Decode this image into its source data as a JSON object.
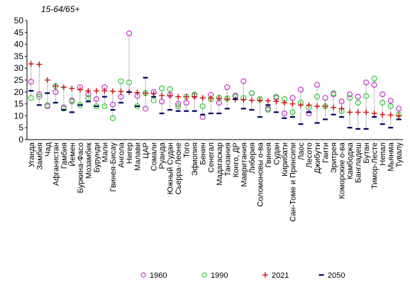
{
  "chart_data": {
    "type": "scatter",
    "title": "15-64/65+",
    "ylim": [
      0,
      50
    ],
    "yticks": [
      0,
      5,
      10,
      15,
      20,
      25,
      30,
      35,
      40,
      45,
      50
    ],
    "grid": false,
    "legend_position": "bottom",
    "categories": [
      "Уганда",
      "Замбия",
      "Чад",
      "Афганистан",
      "Гамбия",
      "Йемен",
      "Буркина-Фасо",
      "Мозамбик",
      "Бурунди",
      "Мали",
      "Гвинея-Бисау",
      "Ангола",
      "Нигер",
      "Малави",
      "ЦАР",
      "Сомали",
      "Руанда",
      "Южный Судан",
      "Сьерра-Леоне",
      "Того",
      "Эфиопия",
      "Бенин",
      "Сенегал",
      "Мадагаскар",
      "Танзания",
      "Конго, ДР",
      "Мавритания",
      "Либерия",
      "Соломоновы о-ва",
      "Гвинея",
      "Судан",
      "Кирибати",
      "Сан-Томе и Принсипи",
      "Лаос",
      "Лесото",
      "Джибути",
      "Гаити",
      "Эритрея",
      "Коморские о-ва",
      "Камбоджа",
      "Бангладеш",
      "Бутан",
      "Тимор-Лесте",
      "Непал",
      "Мьянма",
      "Тувалу"
    ],
    "series": [
      {
        "name": "1960",
        "color": "#cc33cc",
        "marker": "circle",
        "values": [
          24.3,
          19.0,
          14.0,
          20.0,
          13.5,
          16.5,
          22.0,
          19.0,
          17.0,
          22.0,
          14.7,
          18.0,
          44.6,
          18.4,
          13.0,
          20.0,
          16.0,
          18.8,
          15.0,
          15.5,
          18.5,
          9.5,
          18.8,
          15.5,
          22.0,
          18.5,
          24.5,
          19.5,
          17.0,
          13.0,
          17.5,
          11.0,
          17.5,
          21.0,
          11.0,
          23.0,
          17.5,
          19.0,
          16.0,
          19.0,
          18.0,
          24.0,
          23.0,
          19.0,
          16.3,
          13.0
        ]
      },
      {
        "name": "1990",
        "color": "#33cc33",
        "marker": "circle",
        "values": [
          17.5,
          18.0,
          14.5,
          22.5,
          13.0,
          16.0,
          14.5,
          17.5,
          14.0,
          14.0,
          9.0,
          24.5,
          24.0,
          14.0,
          19.5,
          16.5,
          21.5,
          21.2,
          14.0,
          18.0,
          18.9,
          14.0,
          17.0,
          17.6,
          17.3,
          18.0,
          17.5,
          19.5,
          17.0,
          12.5,
          18.0,
          17.0,
          11.5,
          15.5,
          13.5,
          18.0,
          14.0,
          19.5,
          12.0,
          17.5,
          15.5,
          18.3,
          25.6,
          15.5,
          14.0,
          10.5
        ]
      },
      {
        "name": "2021",
        "color": "#cc0000",
        "marker": "plus",
        "values": [
          31.8,
          31.6,
          25.0,
          22.5,
          22.0,
          21.5,
          21.0,
          20.5,
          20.5,
          20.5,
          20.3,
          20.2,
          20.0,
          19.8,
          19.5,
          19.3,
          18.5,
          18.5,
          18.0,
          18.0,
          18.0,
          17.5,
          17.3,
          17.3,
          17.0,
          16.8,
          16.8,
          16.5,
          16.5,
          16.3,
          16.0,
          15.5,
          15.0,
          14.5,
          14.5,
          14.0,
          14.0,
          13.5,
          13.0,
          11.5,
          11.5,
          11.5,
          11.0,
          10.5,
          10.3,
          10.0
        ]
      },
      {
        "name": "2050",
        "color": "#000066",
        "marker": "dash",
        "values": [
          20.5,
          14.5,
          19.5,
          15.5,
          12.5,
          11.5,
          14.5,
          16.0,
          14.0,
          18.0,
          12.5,
          15.5,
          20.0,
          14.0,
          26.0,
          18.0,
          11.0,
          12.5,
          12.0,
          12.0,
          12.0,
          10.5,
          11.0,
          11.0,
          13.0,
          17.0,
          13.0,
          12.5,
          9.5,
          14.5,
          11.5,
          9.0,
          9.5,
          6.5,
          11.5,
          7.0,
          8.5,
          10.5,
          9.5,
          5.0,
          4.5,
          4.5,
          9.5,
          6.5,
          5.0,
          8.5
        ]
      }
    ]
  }
}
